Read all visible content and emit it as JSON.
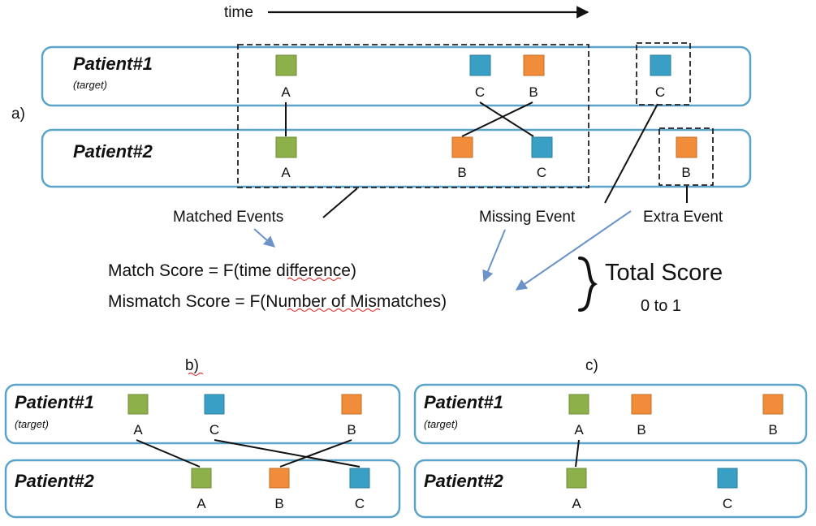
{
  "time_label": "time",
  "panels": {
    "a": "a)",
    "b": "b)",
    "c": "c)"
  },
  "patients": {
    "p1": "Patient#1",
    "p1_sub": "(target)",
    "p2": "Patient#2"
  },
  "events": {
    "A": "A",
    "B": "B",
    "C": "C"
  },
  "colors": {
    "A": "#8db04a",
    "B": "#f08c3a",
    "C": "#3a9fc4",
    "lane_border": "#5ba3c9",
    "arrow": "#6b93c9"
  },
  "captions": {
    "matched": "Matched Events",
    "missing": "Missing Event",
    "extra": "Extra Event"
  },
  "formulas": {
    "match": "Match Score = F(time difference)",
    "mismatch": "Mismatch Score = F(Number of Mismatches)"
  },
  "total": {
    "title": "Total Score",
    "range": "0 to 1"
  }
}
